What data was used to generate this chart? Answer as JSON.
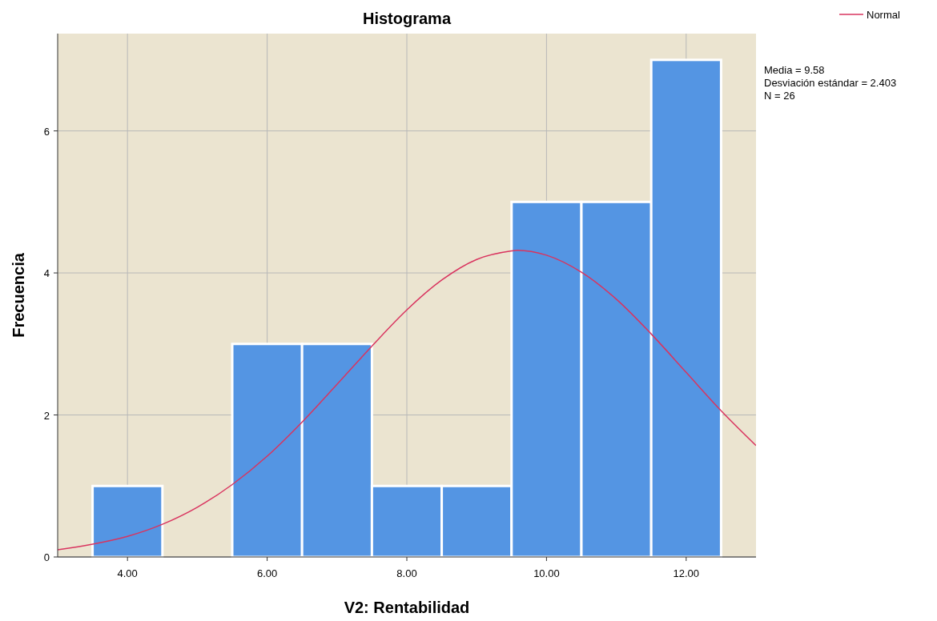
{
  "chart_data": {
    "type": "histogram",
    "title": "Histograma",
    "xlabel": "V2: Rentabilidad",
    "ylabel": "Frecuencia",
    "bins": [
      3.5,
      4.5,
      5.5,
      6.5,
      7.5,
      8.5,
      9.5,
      10.5,
      11.5,
      12.5
    ],
    "values": [
      1,
      0,
      3,
      3,
      1,
      1,
      5,
      5,
      7
    ],
    "color": "#5495e3",
    "series": [
      {
        "name": "Normal",
        "type": "line",
        "color": "#d9345f",
        "x": [
          3,
          3.5,
          4,
          4.5,
          5,
          5.5,
          6,
          6.5,
          7,
          7.5,
          8,
          8.5,
          9,
          9.5,
          9.58,
          10,
          10.5,
          11,
          11.5,
          12,
          12.5,
          13
        ],
        "values": [
          0.1,
          0.18,
          0.29,
          0.46,
          0.7,
          1.02,
          1.42,
          1.9,
          2.43,
          2.97,
          3.48,
          3.9,
          4.19,
          4.31,
          4.32,
          4.25,
          4.01,
          3.63,
          3.14,
          2.6,
          2.06,
          1.57
        ]
      }
    ],
    "xlim": [
      3,
      13
    ],
    "xticks": [
      {
        "value": 4,
        "label": "4.00"
      },
      {
        "value": 6,
        "label": "6.00"
      },
      {
        "value": 8,
        "label": "8.00"
      },
      {
        "value": 10,
        "label": "10.00"
      },
      {
        "value": 12,
        "label": "12.00"
      }
    ],
    "ylim": [
      0,
      7.37
    ],
    "yticks": [
      0,
      2,
      4,
      6
    ],
    "grid": true,
    "legend": "top right",
    "annotations": [
      "Media = 9.58",
      "Desviación estándar = 2.403",
      "N = 26"
    ]
  }
}
